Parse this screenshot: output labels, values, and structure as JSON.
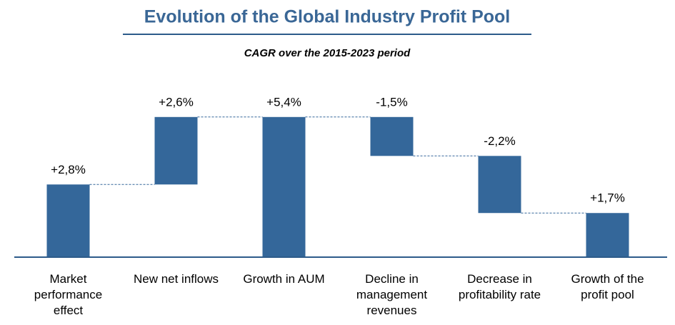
{
  "chart_data": {
    "type": "waterfall",
    "title": "Evolution of the Global Industry Profit Pool",
    "subtitle": "CAGR over the 2015-2023 period",
    "categories": [
      "Market performance effect",
      "New net inflows",
      "Growth in AUM",
      "Decline in management revenues",
      "Decrease in profitability rate",
      "Growth of the profit pool"
    ],
    "values": [
      2.8,
      2.6,
      5.4,
      -1.5,
      -2.2,
      1.7
    ],
    "value_labels": [
      "+2,8%",
      "+2,6%",
      "+5,4%",
      "-1,5%",
      "-2,2%",
      "+1,7%"
    ],
    "measure": [
      "relative",
      "relative",
      "total",
      "relative",
      "relative",
      "total"
    ],
    "color": "#34679a",
    "ylim": [
      0,
      6
    ]
  }
}
